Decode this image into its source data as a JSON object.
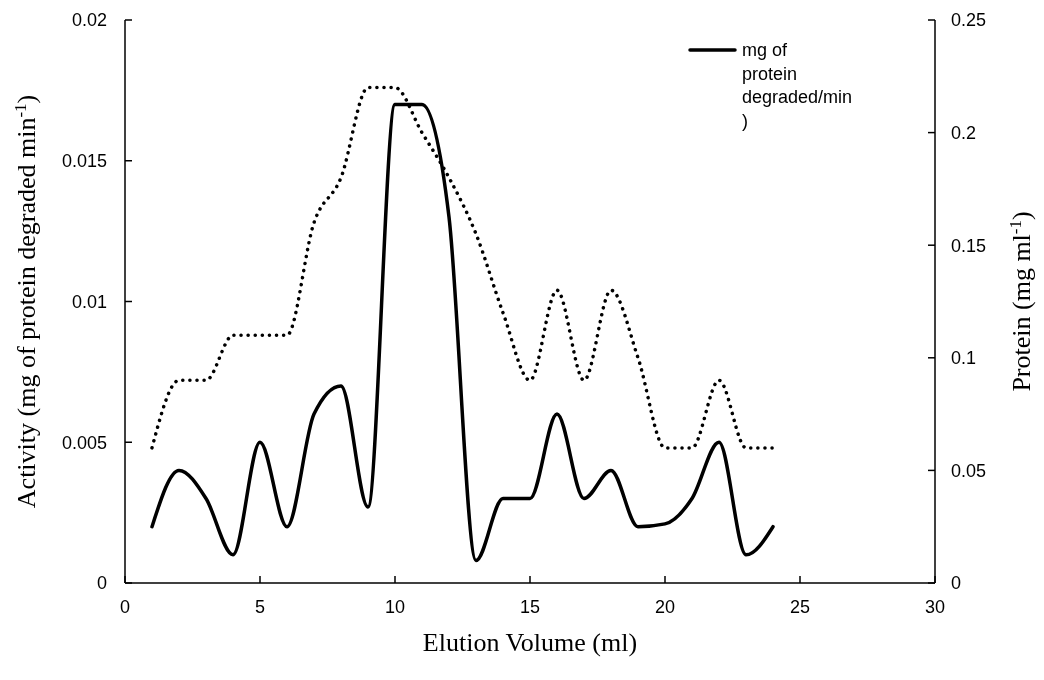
{
  "chart_data": {
    "type": "line",
    "xlabel": "Elution Volume (ml)",
    "ylabel": "Activity (mg of protein degraded min$^{-1}$)",
    "y2label": "Protein (mg ml$^{-1}$)",
    "x": [
      1,
      2,
      3,
      4,
      5,
      6,
      7,
      8,
      9,
      10,
      11,
      12,
      13,
      14,
      15,
      16,
      17,
      18,
      19,
      20,
      21,
      22,
      23,
      24
    ],
    "series": [
      {
        "name": "mg of protein degraded/min)",
        "color": "#000000",
        "line_style": "solid",
        "values": [
          0.002,
          0.004,
          0.003,
          0.001,
          0.005,
          0.002,
          0.006,
          0.007,
          0.0027,
          0.017,
          0.017,
          0.013,
          0.0008,
          0.003,
          0.003,
          0.006,
          0.003,
          0.004,
          0.002,
          0.0021,
          0.003,
          0.005,
          0.001,
          0.002
        ]
      },
      {
        "color": "#000000",
        "line_style": "dotted",
        "axis": "y2",
        "values": [
          0.06,
          0.09,
          0.09,
          0.11,
          0.11,
          0.11,
          0.16,
          0.18,
          0.22,
          0.22,
          0.2,
          0.18,
          0.155,
          0.12,
          0.09,
          0.13,
          0.09,
          0.13,
          0.1,
          0.06,
          0.06,
          0.09,
          0.06,
          0.06
        ]
      }
    ],
    "xlim": [
      0,
      30
    ],
    "xticks": [
      0,
      5,
      10,
      15,
      20,
      25,
      30
    ],
    "ylim": [
      0,
      0.02
    ],
    "yticks": [
      0,
      0.005,
      0.01,
      0.015,
      0.02
    ],
    "y2lim": [
      0,
      0.25
    ],
    "y2ticks": [
      0,
      0.05,
      0.1,
      0.15,
      0.2,
      0.25
    ],
    "marker": "none",
    "grid": false,
    "legend": "top right"
  }
}
